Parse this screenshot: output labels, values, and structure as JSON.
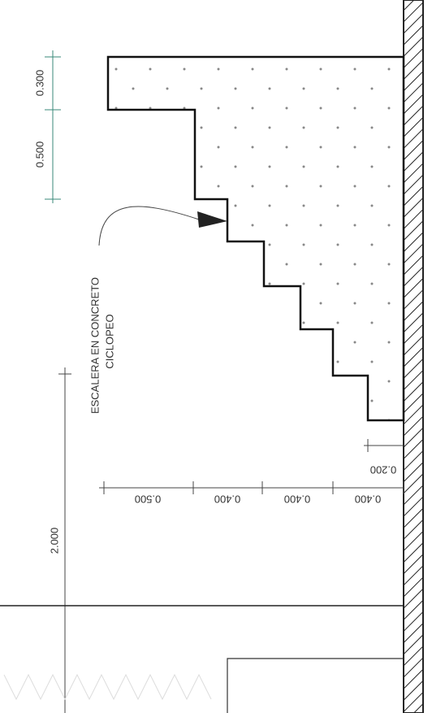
{
  "dimensions_left": [
    "0.300",
    "0.500"
  ],
  "annotation": {
    "line1": "ESCALERA EN CONCRETO",
    "line2": "CICLOPEO"
  },
  "dimension_long": "2.000",
  "dimensions_bottom": [
    "0.500",
    "0.400",
    "0.400",
    "0.400"
  ],
  "dimension_small": "0.200"
}
